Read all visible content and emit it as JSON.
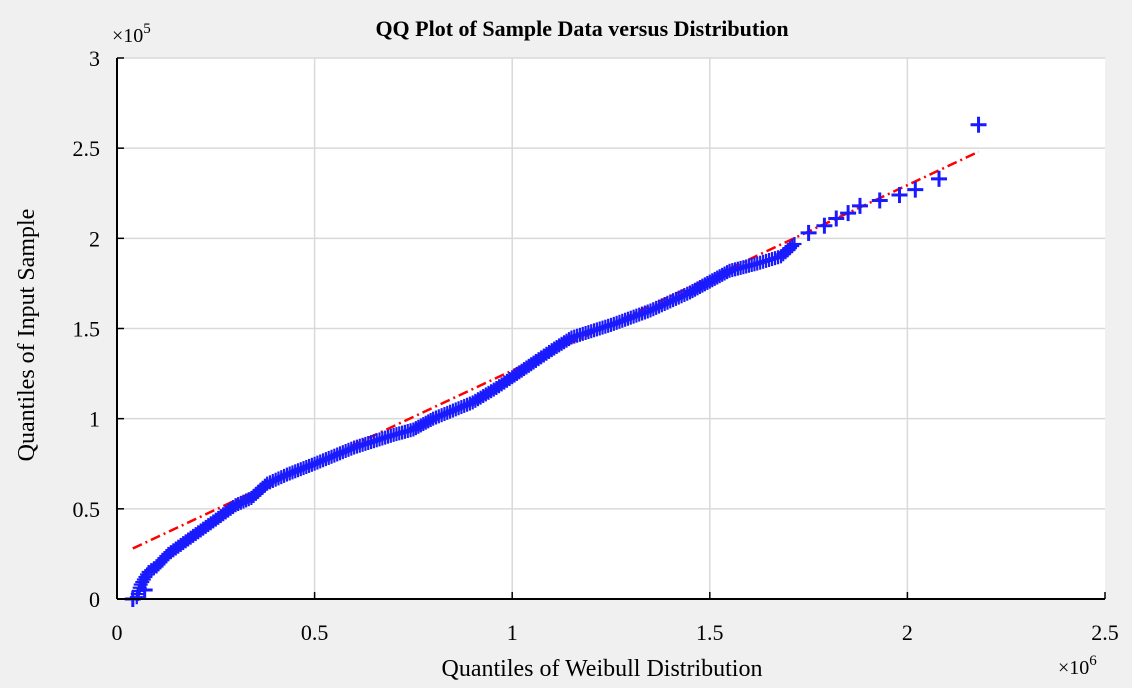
{
  "chart_data": {
    "type": "scatter",
    "title": "QQ Plot of Sample Data versus Distribution",
    "xlabel": "Quantiles of Weibull Distribution",
    "ylabel": "Quantiles of Input Sample",
    "x_multiplier": "×10",
    "x_exponent": "6",
    "y_multiplier": "×10",
    "y_exponent": "5",
    "xlim": [
      0,
      2.5
    ],
    "ylim": [
      0,
      3
    ],
    "x_ticks": [
      "0",
      "0.5",
      "1",
      "1.5",
      "2",
      "2.5"
    ],
    "y_ticks": [
      "0",
      "0.5",
      "1",
      "1.5",
      "2",
      "2.5",
      "3"
    ],
    "grid": true,
    "marker_color": "#1a1aff",
    "line_color": "#ff0000",
    "curve": [
      [
        0.05,
        0.01
      ],
      [
        0.06,
        0.08
      ],
      [
        0.08,
        0.15
      ],
      [
        0.1,
        0.18
      ],
      [
        0.13,
        0.25
      ],
      [
        0.18,
        0.33
      ],
      [
        0.25,
        0.44
      ],
      [
        0.3,
        0.52
      ],
      [
        0.34,
        0.56
      ],
      [
        0.38,
        0.64
      ],
      [
        0.43,
        0.69
      ],
      [
        0.5,
        0.75
      ],
      [
        0.6,
        0.84
      ],
      [
        0.7,
        0.91
      ],
      [
        0.75,
        0.94
      ],
      [
        0.8,
        1.0
      ],
      [
        0.9,
        1.09
      ],
      [
        0.96,
        1.17
      ],
      [
        1.0,
        1.23
      ],
      [
        1.06,
        1.32
      ],
      [
        1.1,
        1.38
      ],
      [
        1.15,
        1.45
      ],
      [
        1.25,
        1.52
      ],
      [
        1.35,
        1.6
      ],
      [
        1.45,
        1.7
      ],
      [
        1.5,
        1.76
      ],
      [
        1.55,
        1.82
      ],
      [
        1.62,
        1.86
      ],
      [
        1.68,
        1.9
      ],
      [
        1.72,
        1.98
      ]
    ],
    "outliers": [
      [
        0.04,
        0.0
      ],
      [
        0.07,
        0.05
      ],
      [
        1.75,
        2.03
      ],
      [
        1.79,
        2.07
      ],
      [
        1.82,
        2.11
      ],
      [
        1.85,
        2.14
      ],
      [
        1.88,
        2.18
      ],
      [
        1.93,
        2.21
      ],
      [
        1.98,
        2.24
      ],
      [
        2.02,
        2.27
      ],
      [
        2.08,
        2.33
      ],
      [
        2.18,
        2.63
      ]
    ],
    "fit_line": {
      "x1": 0.04,
      "y1": 0.28,
      "x2": 2.18,
      "y2": 2.48
    }
  }
}
